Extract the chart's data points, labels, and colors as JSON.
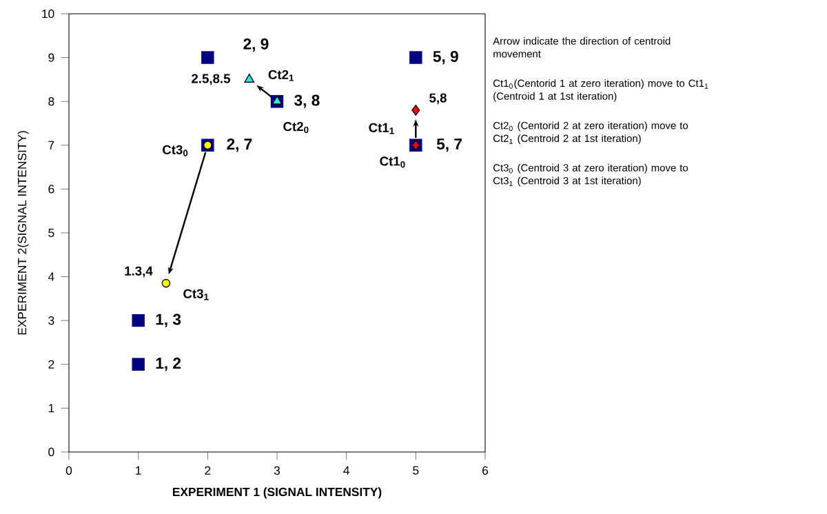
{
  "chart_data": {
    "type": "scatter",
    "xlabel": "EXPERIMENT 1 (SIGNAL INTENSITY)",
    "ylabel": "EXPERIMENT 2(SIGNAL INTENSITY)",
    "xlim": [
      0,
      6
    ],
    "ylim": [
      0,
      10
    ],
    "xticks": [
      0,
      1,
      2,
      3,
      4,
      5,
      6
    ],
    "yticks": [
      0,
      1,
      2,
      3,
      4,
      5,
      6,
      7,
      8,
      9,
      10
    ],
    "grid": false,
    "series": [
      {
        "x": [
          1,
          1,
          2,
          2,
          3,
          5,
          5
        ],
        "values": [
          2,
          3,
          7,
          9,
          8,
          7,
          9
        ],
        "color": "#000080",
        "marker": "square"
      },
      {
        "x": [
          5,
          5
        ],
        "values": [
          7,
          7.8
        ],
        "color": "#ff0000",
        "marker": "diamond"
      },
      {
        "x": [
          3,
          2.6
        ],
        "values": [
          8,
          8.5
        ],
        "color": "#33e6e6",
        "marker": "triangle"
      },
      {
        "x": [
          2,
          1.4
        ],
        "values": [
          7,
          3.85
        ],
        "color": "#ffff00",
        "marker": "circle"
      }
    ],
    "annotations": [
      {
        "text": "1, 2",
        "x": 1,
        "y": 2
      },
      {
        "text": "1, 3",
        "x": 1,
        "y": 3
      },
      {
        "text": "2, 7",
        "x": 2,
        "y": 7
      },
      {
        "text": "2, 9",
        "x": 2,
        "y": 9
      },
      {
        "text": "3, 8",
        "x": 3,
        "y": 8
      },
      {
        "text": "5, 7",
        "x": 5,
        "y": 7
      },
      {
        "text": "5, 9",
        "x": 5,
        "y": 9
      },
      {
        "text": "Ct1$_{0}$",
        "x": 5,
        "y": 7
      },
      {
        "text": "Ct1$_{1}$",
        "x": 5,
        "y": 7.8
      },
      {
        "text": "5,8",
        "x": 5,
        "y": 7.8
      },
      {
        "text": "Ct2$_{0}$",
        "x": 3,
        "y": 8
      },
      {
        "text": "Ct2$_{1}$",
        "x": 2.6,
        "y": 8.5
      },
      {
        "text": "2.5,8.5",
        "x": 2.6,
        "y": 8.5
      },
      {
        "text": "Ct3$_{0}$",
        "x": 2,
        "y": 7
      },
      {
        "text": "Ct3$_{1}$",
        "x": 1.4,
        "y": 3.85
      },
      {
        "text": "1.3,4",
        "x": 1.4,
        "y": 3.85
      },
      "Arrow indicate the direction of centroid movement",
      "Ct1$_{0}$(Centorid 1 at zero iteration) move to Ct1$_{1}$ (Centroid 1 at 1st iteration)",
      "Ct2$_{0}$ (Centorid 2 at zero iteration) move to Ct2$_{1}$ (Centroid 2 at 1st iteration)",
      "Ct3$_{0}$ (Centroid 3 at zero iteration) move to Ct3$_{1}$ (Centroid 3 at 1st iteration)"
    ]
  }
}
